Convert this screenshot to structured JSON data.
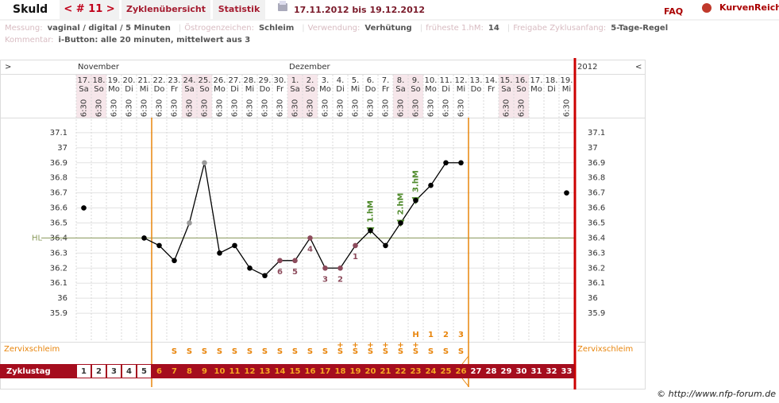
{
  "header": {
    "name": "Skuld",
    "cycle": "< # 11 >",
    "tabs": [
      "Zyklenübersicht",
      "Statistik"
    ],
    "period": "17.11.2012 bis 19.12.2012",
    "faq": "FAQ",
    "logo": "KurvenReich"
  },
  "info": {
    "fields": [
      {
        "label": "Messung:",
        "value": "vaginal / digital / 5 Minuten"
      },
      {
        "label": "Östrogenzeichen:",
        "value": "Schleim"
      },
      {
        "label": "Verwendung:",
        "value": "Verhütung"
      },
      {
        "label": "früheste 1.hM:",
        "value": "14"
      },
      {
        "label": "Freigabe Zyklusanfang:",
        "value": "5-Tage-Regel"
      }
    ],
    "comment": {
      "label": "Kommentar:",
      "value": "i-Button: alle 20 minuten, mittelwert aus 3"
    }
  },
  "chart_data": {
    "type": "line",
    "nav_left": ">",
    "nav_right": "<",
    "year": "2012",
    "months": [
      "November",
      "Dezember"
    ],
    "categories": [
      "17.",
      "18.",
      "19.",
      "20.",
      "21.",
      "22.",
      "23.",
      "24.",
      "25.",
      "26.",
      "27.",
      "28.",
      "29.",
      "30.",
      "1.",
      "2.",
      "3.",
      "4.",
      "5.",
      "6.",
      "7.",
      "8.",
      "9.",
      "10.",
      "11.",
      "12.",
      "13.",
      "14.",
      "15.",
      "16.",
      "17.",
      "18.",
      "19."
    ],
    "weekdays": [
      "Sa",
      "So",
      "Mo",
      "Di",
      "Mi",
      "Do",
      "Fr",
      "Sa",
      "So",
      "Mo",
      "Di",
      "Mi",
      "Do",
      "Fr",
      "Sa",
      "So",
      "Mo",
      "Di",
      "Mi",
      "Do",
      "Fr",
      "Sa",
      "So",
      "Mo",
      "Di",
      "Mi",
      "Do",
      "Fr",
      "Sa",
      "So",
      "Mo",
      "Di",
      "Mi"
    ],
    "times": [
      "6:30",
      "6:30",
      "6:30",
      "6:30",
      "6:30",
      "6:30",
      "6:30",
      "6:30",
      "6:30",
      "6:30",
      "6:30",
      "6:30",
      "6:30",
      "6:30",
      "6:30",
      "6:30",
      "6:30",
      "6:30",
      "6:30",
      "6:30",
      "6:30",
      "6:30",
      "6:30",
      "6:30",
      "6:30",
      "6:30",
      null,
      null,
      "6:30",
      "6:30",
      null,
      null,
      "6:30"
    ],
    "values": [
      36.6,
      null,
      null,
      null,
      36.4,
      36.35,
      36.25,
      36.5,
      36.9,
      36.3,
      36.35,
      36.2,
      36.15,
      36.25,
      36.25,
      36.4,
      36.2,
      36.2,
      36.35,
      36.45,
      36.35,
      36.5,
      36.65,
      36.75,
      36.9,
      36.9,
      null,
      null,
      null,
      null,
      null,
      null,
      36.7
    ],
    "color": "#000000",
    "point_colors": [
      "#000000",
      null,
      null,
      null,
      "#000000",
      "#000000",
      "#000000",
      "#999999",
      "#999999",
      "#000000",
      "#000000",
      "#000000",
      "#000000",
      "#8c4b5c",
      "#8c4b5c",
      "#8c4b5c",
      "#8c4b5c",
      "#8c4b5c",
      "#8c4b5c",
      "#000000",
      "#000000",
      "#000000",
      "#000000",
      "#000000",
      "#000000",
      "#000000",
      null,
      null,
      null,
      null,
      null,
      null,
      "#000000"
    ],
    "point_labels": [
      null,
      null,
      null,
      null,
      null,
      null,
      null,
      null,
      null,
      null,
      null,
      null,
      null,
      "6",
      "5",
      "4",
      "3",
      "2",
      "1",
      null,
      null,
      null,
      null,
      null,
      null,
      null,
      null,
      null,
      null,
      null,
      null,
      null,
      null
    ],
    "markers": [
      null,
      null,
      null,
      null,
      null,
      null,
      null,
      null,
      null,
      null,
      null,
      null,
      null,
      null,
      null,
      null,
      null,
      null,
      null,
      "1.hM",
      null,
      "2.hM",
      "3.hM",
      null,
      null,
      null,
      null,
      null,
      null,
      null,
      null,
      null,
      null
    ],
    "marker_color": "#4f8a2b",
    "hl": {
      "label": "HL",
      "value": 36.4,
      "color": "#8a9a5b"
    },
    "ylim": [
      35.8,
      37.2
    ],
    "yticks": [
      37.1,
      37,
      36.9,
      36.8,
      36.7,
      36.6,
      36.5,
      36.4,
      36.3,
      36.2,
      36.1,
      36,
      35.9
    ],
    "grid": true,
    "mucus_label": "Zervixschleim",
    "mucus": [
      null,
      null,
      null,
      null,
      null,
      null,
      "S",
      "S",
      "S",
      "S",
      "S",
      "S",
      "S",
      "S",
      "S",
      "S",
      "S",
      "S",
      "S",
      "S",
      "S",
      "S",
      "S",
      "S",
      "S",
      "S",
      null,
      null,
      null,
      null,
      null,
      null,
      null
    ],
    "mucus_plus": [
      null,
      null,
      null,
      null,
      null,
      null,
      null,
      null,
      null,
      null,
      null,
      null,
      null,
      null,
      null,
      null,
      null,
      "+",
      "+",
      "+",
      "+",
      "+",
      "+",
      null,
      null,
      null,
      null,
      null,
      null,
      null,
      null,
      null,
      null
    ],
    "peak": [
      null,
      null,
      null,
      null,
      null,
      null,
      null,
      null,
      null,
      null,
      null,
      null,
      null,
      null,
      null,
      null,
      null,
      null,
      null,
      null,
      null,
      null,
      "H",
      "1",
      "2",
      "3",
      null,
      null,
      null,
      null,
      null,
      null,
      null
    ],
    "cycle_label": "Zyklustag",
    "cycle_days": [
      1,
      2,
      3,
      4,
      5,
      6,
      7,
      8,
      9,
      10,
      11,
      12,
      13,
      14,
      15,
      16,
      17,
      18,
      19,
      20,
      21,
      22,
      23,
      24,
      25,
      26,
      27,
      28,
      29,
      30,
      31,
      32,
      33
    ],
    "fertile_days": [
      6,
      26
    ]
  },
  "footer": "© http://www.nfp-forum.de"
}
